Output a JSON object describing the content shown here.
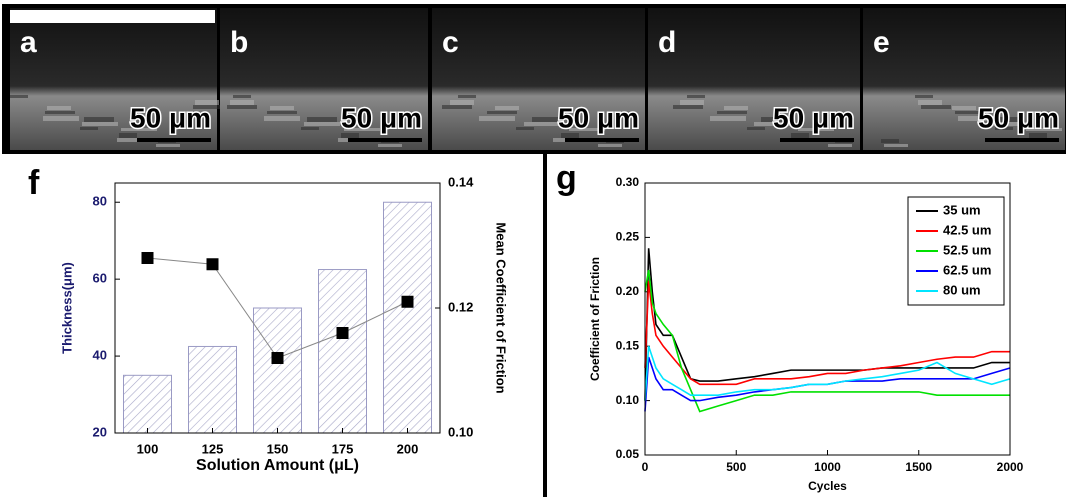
{
  "panels": [
    {
      "label": "a",
      "scale": "50 μm"
    },
    {
      "label": "b",
      "scale": "50 μm"
    },
    {
      "label": "c",
      "scale": "50 μm"
    },
    {
      "label": "d",
      "scale": "50 μm"
    },
    {
      "label": "e",
      "scale": "50 μm"
    }
  ],
  "chart_data": [
    {
      "type": "bar_line",
      "label": "f",
      "xlabel": "Solution Amount (μL)",
      "ylabel": "Thickness(μm)",
      "y2label": "Mean Coefficient of Friction",
      "categories": [
        "100",
        "125",
        "150",
        "175",
        "200"
      ],
      "bars": {
        "values": [
          35,
          42.5,
          52.5,
          62.5,
          80
        ],
        "color": "#9a9ac4"
      },
      "line": {
        "values": [
          0.128,
          0.127,
          0.112,
          0.116,
          0.121
        ],
        "color": "#000000",
        "axis": "y2"
      },
      "ylim": [
        20,
        85
      ],
      "yticks": [
        20,
        40,
        60,
        80
      ],
      "y2lim": [
        0.1,
        0.14
      ],
      "y2ticks": [
        {
          "value": 0.1,
          "label": "0.10"
        },
        {
          "value": 0.12,
          "label": "0.12"
        },
        {
          "value": 0.14,
          "label": "0.14"
        }
      ]
    },
    {
      "type": "line",
      "label": "g",
      "xlabel": "Cycles",
      "ylabel": "Coefficient of Friction",
      "legend": "upper right",
      "x": [
        0,
        20,
        40,
        60,
        100,
        150,
        200,
        250,
        300,
        400,
        500,
        600,
        700,
        800,
        900,
        1000,
        1100,
        1200,
        1300,
        1400,
        1500,
        1600,
        1700,
        1800,
        1900,
        2000
      ],
      "series": [
        {
          "name": "35 um",
          "color": "#000000",
          "values": [
            0.1,
            0.24,
            0.2,
            0.17,
            0.16,
            0.16,
            0.14,
            0.12,
            0.118,
            0.118,
            0.12,
            0.122,
            0.125,
            0.128,
            0.128,
            0.128,
            0.128,
            0.128,
            0.13,
            0.13,
            0.13,
            0.13,
            0.13,
            0.13,
            0.135,
            0.135
          ]
        },
        {
          "name": "42.5 um",
          "color": "#ff0000",
          "values": [
            0.13,
            0.21,
            0.18,
            0.16,
            0.15,
            0.14,
            0.13,
            0.12,
            0.115,
            0.115,
            0.115,
            0.12,
            0.12,
            0.12,
            0.122,
            0.125,
            0.125,
            0.128,
            0.13,
            0.132,
            0.135,
            0.138,
            0.14,
            0.14,
            0.145,
            0.145
          ]
        },
        {
          "name": "52.5 um",
          "color": "#00e000",
          "values": [
            0.2,
            0.22,
            0.19,
            0.18,
            0.17,
            0.16,
            0.13,
            0.11,
            0.09,
            0.095,
            0.1,
            0.105,
            0.105,
            0.108,
            0.108,
            0.108,
            0.108,
            0.108,
            0.108,
            0.108,
            0.108,
            0.105,
            0.105,
            0.105,
            0.105,
            0.105
          ]
        },
        {
          "name": "62.5 um",
          "color": "#0000ff",
          "values": [
            0.09,
            0.14,
            0.13,
            0.12,
            0.11,
            0.11,
            0.105,
            0.1,
            0.1,
            0.103,
            0.105,
            0.108,
            0.11,
            0.112,
            0.115,
            0.115,
            0.118,
            0.118,
            0.118,
            0.12,
            0.12,
            0.12,
            0.12,
            0.12,
            0.125,
            0.13
          ]
        },
        {
          "name": "80 um",
          "color": "#00e5ff",
          "values": [
            0.1,
            0.15,
            0.14,
            0.13,
            0.12,
            0.115,
            0.11,
            0.105,
            0.105,
            0.105,
            0.108,
            0.11,
            0.11,
            0.112,
            0.115,
            0.115,
            0.118,
            0.12,
            0.122,
            0.125,
            0.128,
            0.135,
            0.125,
            0.12,
            0.115,
            0.12
          ]
        }
      ],
      "xlim": [
        0,
        2000
      ],
      "xticks": [
        0,
        500,
        1000,
        1500,
        2000
      ],
      "ylim": [
        0.05,
        0.3
      ],
      "yticks": [
        {
          "value": 0.05,
          "label": "0.05"
        },
        {
          "value": 0.1,
          "label": "0.10"
        },
        {
          "value": 0.15,
          "label": "0.15"
        },
        {
          "value": 0.2,
          "label": "0.20"
        },
        {
          "value": 0.25,
          "label": "0.25"
        },
        {
          "value": 0.3,
          "label": "0.30"
        }
      ]
    }
  ]
}
